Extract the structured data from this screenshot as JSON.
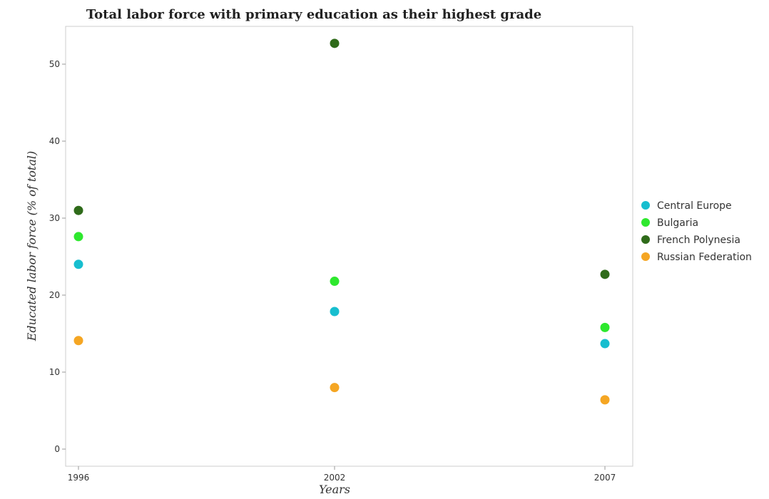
{
  "chart_data": {
    "type": "scatter",
    "title": "Total labor force with primary education as their highest grade",
    "xlabel": "Years",
    "ylabel": "Educated labor force (% of total)",
    "categories": [
      "1996",
      "2002",
      "2007"
    ],
    "ylim": [
      0,
      55
    ],
    "yticks": [
      0,
      10,
      20,
      30,
      40,
      50
    ],
    "grid": false,
    "legend_position": "right",
    "series": [
      {
        "name": "Central Europe",
        "color": "#17becf",
        "values": [
          24.0,
          17.87,
          13.7
        ]
      },
      {
        "name": "Bulgaria",
        "color": "#2ee82e",
        "values": [
          27.6,
          21.8,
          15.8
        ]
      },
      {
        "name": "French Polynesia",
        "color": "#2f6b1a",
        "values": [
          31.0,
          52.7,
          22.7
        ]
      },
      {
        "name": "Russian Federation",
        "color": "#f5a623",
        "values": [
          14.1,
          8.0,
          6.4
        ]
      }
    ]
  }
}
